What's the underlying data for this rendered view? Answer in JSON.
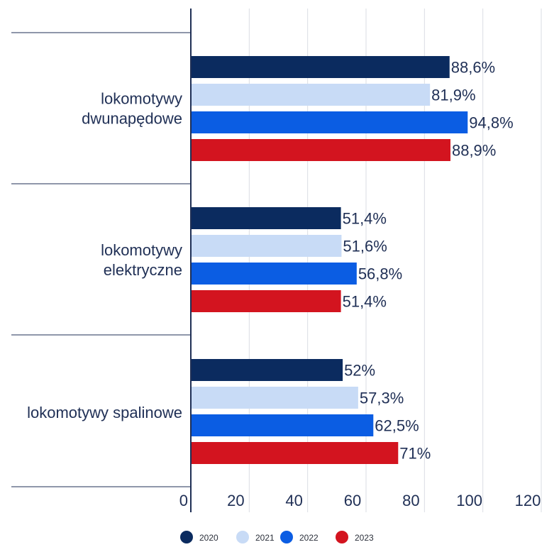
{
  "chart_data": {
    "type": "bar",
    "orientation": "horizontal",
    "categories": [
      [
        "lokomotywy",
        "dwunapędowe"
      ],
      [
        "lokomotywy",
        "elektryczne"
      ],
      [
        "lokomotywy spalinowe"
      ]
    ],
    "series": [
      {
        "name": "2020",
        "values": [
          88.6,
          51.4,
          52
        ],
        "labels": [
          "88,6%",
          "51,4%",
          "52%"
        ],
        "color": "#0b2b5f"
      },
      {
        "name": "2021",
        "values": [
          81.9,
          51.6,
          57.3
        ],
        "labels": [
          "81,9%",
          "51,6%",
          "57,3%"
        ],
        "color": "#c8dbf6"
      },
      {
        "name": "2022",
        "values": [
          94.8,
          56.8,
          62.5
        ],
        "labels": [
          "94,8%",
          "56,8%",
          "62,5%"
        ],
        "color": "#0b5de3"
      },
      {
        "name": "2023",
        "values": [
          88.9,
          51.4,
          71
        ],
        "labels": [
          "88,9%",
          "51,4%",
          "71%"
        ],
        "color": "#d3141f"
      }
    ],
    "xlim": [
      0,
      120
    ],
    "xticks": [
      0,
      20,
      40,
      60,
      80,
      100,
      120
    ],
    "grid": "vertical",
    "legend_position": "bottom"
  }
}
